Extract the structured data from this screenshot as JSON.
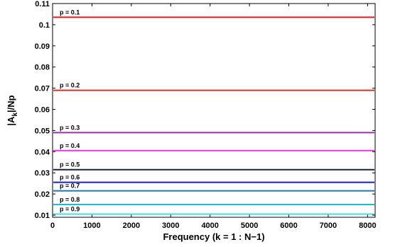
{
  "chart_data": {
    "type": "line",
    "title": "",
    "xlabel": "Frequency (k = 1 : N−1)",
    "ylabel_main": "|A",
    "ylabel_sub": "k",
    "ylabel_tail": "|/Np",
    "xlim": [
      0,
      8192
    ],
    "ylim": [
      0.009,
      0.11
    ],
    "xticks": [
      0,
      1000,
      2000,
      3000,
      4000,
      5000,
      6000,
      7000,
      8000
    ],
    "xtick_labels": [
      "0",
      "1000",
      "2000",
      "3000",
      "4000",
      "5000",
      "6000",
      "7000",
      "8000"
    ],
    "yticks": [
      0.01,
      0.02,
      0.03,
      0.04,
      0.05,
      0.06,
      0.07,
      0.08,
      0.09,
      0.1,
      0.11
    ],
    "ytick_labels": [
      "0.01",
      "0.02",
      "0.03",
      "0.04",
      "0.05",
      "0.06",
      "0.07",
      "0.08",
      "0.09",
      "0.1",
      "0.11"
    ],
    "grid": false,
    "legend": "none",
    "series": [
      {
        "label": "p = 0.1",
        "y": 0.1035,
        "color": "#e31a1c"
      },
      {
        "label": "p = 0.2",
        "y": 0.069,
        "color": "#d7301f"
      },
      {
        "label": "p = 0.3",
        "y": 0.049,
        "color": "#9b30b0"
      },
      {
        "label": "p = 0.4",
        "y": 0.0405,
        "color": "#e633e6"
      },
      {
        "label": "p = 0.5",
        "y": 0.0315,
        "color": "#1a2140"
      },
      {
        "label": "p = 0.6",
        "y": 0.0255,
        "color": "#1c1ccf"
      },
      {
        "label": "p = 0.7",
        "y": 0.0215,
        "color": "#1f78b4"
      },
      {
        "label": "p = 0.8",
        "y": 0.015,
        "color": "#17becf"
      },
      {
        "label": "p = 0.9",
        "y": 0.0105,
        "color": "#40e0e0"
      }
    ]
  }
}
